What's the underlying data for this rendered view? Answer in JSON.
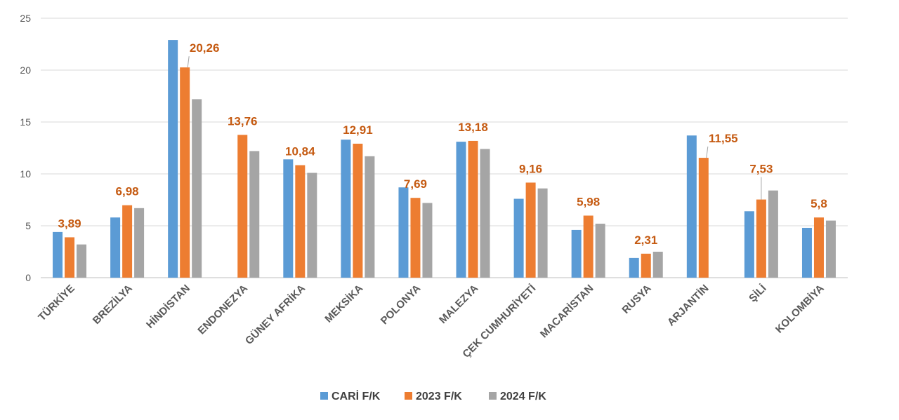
{
  "chart_data": {
    "type": "bar",
    "title": "",
    "xlabel": "",
    "ylabel": "",
    "ylim": [
      0,
      25
    ],
    "yticks": [
      0,
      5,
      10,
      15,
      20,
      25
    ],
    "grid": true,
    "legend_position": "bottom",
    "categories": [
      "TÜRKİYE",
      "BREZİLYA",
      "HİNDİSTAN",
      "ENDONEZYA",
      "GÜNEY AFRİKA",
      "MEKSİKA",
      "POLONYA",
      "MALEZYA",
      "ÇEK CUMHURİYETİ",
      "MACARİSTAN",
      "RUSYA",
      "ARJANTİN",
      "ŞİLİ",
      "KOLOMBİYA"
    ],
    "series": [
      {
        "name": "CARİ F/K",
        "color": "#5b9bd5",
        "values": [
          4.4,
          5.8,
          22.9,
          null,
          11.4,
          13.3,
          8.7,
          13.1,
          7.6,
          4.6,
          1.9,
          13.7,
          6.4,
          4.8
        ]
      },
      {
        "name": "2023 F/K",
        "color": "#ed7d31",
        "values": [
          3.89,
          6.98,
          20.26,
          13.76,
          10.84,
          12.91,
          7.69,
          13.18,
          9.16,
          5.98,
          2.31,
          11.55,
          7.53,
          5.8
        ]
      },
      {
        "name": "2024 F/K",
        "color": "#a5a5a5",
        "values": [
          3.2,
          6.7,
          17.2,
          12.2,
          10.1,
          11.7,
          7.2,
          12.4,
          8.6,
          5.2,
          2.5,
          null,
          8.4,
          5.5
        ]
      }
    ],
    "data_labels": {
      "series": "2023 F/K",
      "texts": [
        "3,89",
        "6,98",
        "20,26",
        "13,76",
        "10,84",
        "12,91",
        "7,69",
        "13,18",
        "9,16",
        "5,98",
        "2,31",
        "11,55",
        "7,53",
        "5,8"
      ]
    }
  }
}
